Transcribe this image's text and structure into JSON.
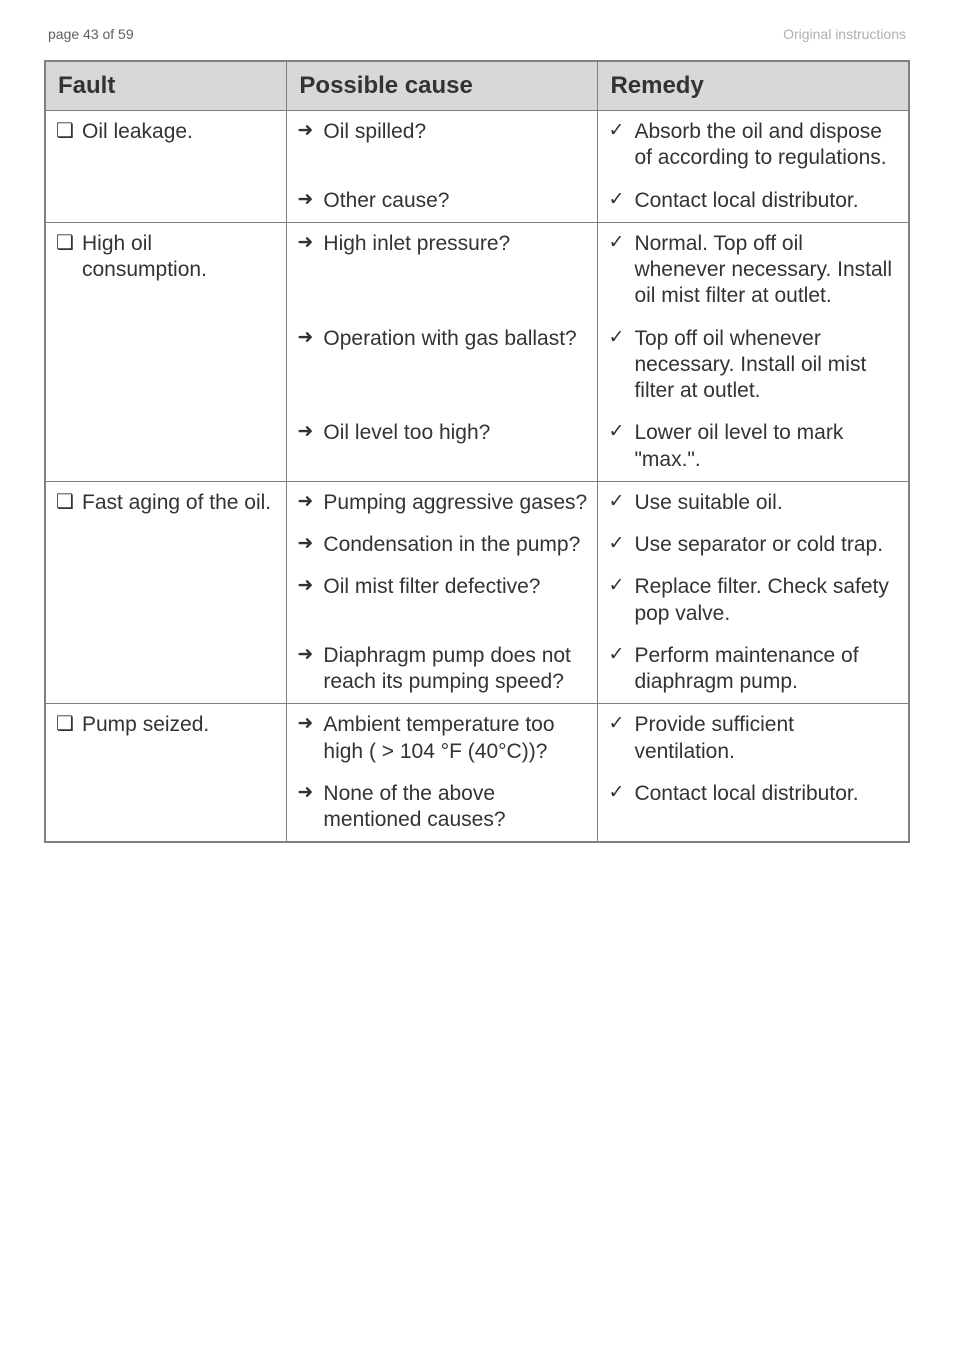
{
  "page_header": {
    "left": "page 43 of 59",
    "right": "Original instructions"
  },
  "columns": {
    "fault": "Fault",
    "cause": "Possible cause",
    "remedy": "Remedy"
  },
  "glyphs": {
    "square": "❏",
    "arrow": "➜",
    "check": "✓"
  },
  "rows": [
    {
      "fault": "Oil leakage.",
      "pairs": [
        {
          "cause": "Oil spilled?",
          "remedy": "Absorb the oil and dispose of according to regulations."
        },
        {
          "cause": "Other cause?",
          "remedy": "Contact local distributor."
        }
      ]
    },
    {
      "fault": "High oil consumption.",
      "pairs": [
        {
          "cause": "High inlet pressure?",
          "remedy": "Normal. Top off oil whenever necessary. Install oil mist filter at outlet."
        },
        {
          "cause": "Operation with gas ballast?",
          "remedy": "Top off oil whenever necessary. Install oil mist filter at outlet."
        },
        {
          "cause": "Oil level too high?",
          "remedy": "Lower oil level to mark \"max.\"."
        }
      ]
    },
    {
      "fault": "Fast aging of the oil.",
      "pairs": [
        {
          "cause": "Pumping aggressive gases?",
          "remedy": "Use suitable oil."
        },
        {
          "cause": "Condensation in the pump?",
          "remedy": "Use separator or cold trap."
        },
        {
          "cause": "Oil mist filter defective?",
          "remedy": "Replace filter. Check safety pop valve."
        },
        {
          "cause": "Diaphragm pump does not reach its pumping speed?",
          "remedy": "Perform maintenance of diaphragm pump."
        }
      ]
    },
    {
      "fault": "Pump seized.",
      "pairs": [
        {
          "cause": "Ambient temperature too high ( > 104 °F (40°C))?",
          "remedy": "Provide sufficient ventilation."
        },
        {
          "cause": "None of the above mentioned causes?",
          "remedy": "Contact local distributor."
        }
      ]
    }
  ]
}
